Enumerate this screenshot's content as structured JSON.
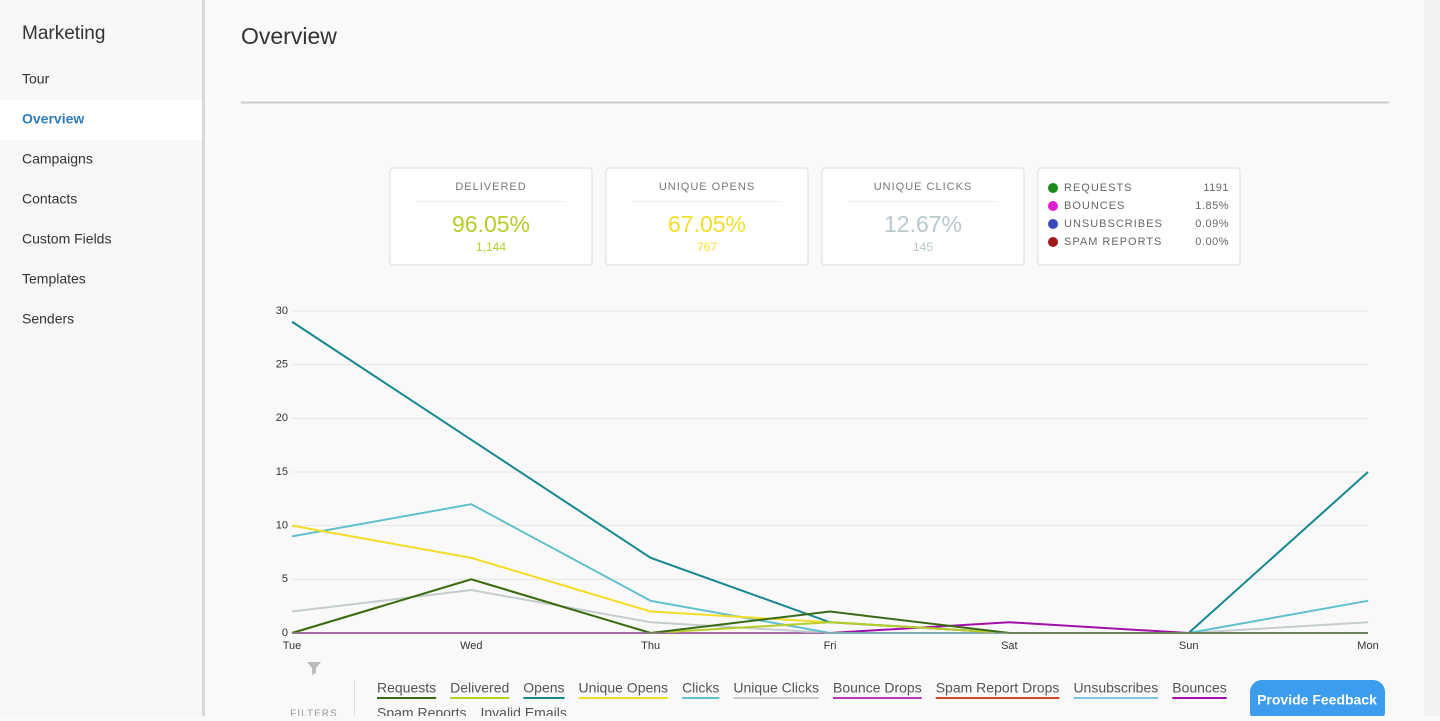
{
  "sidebar": {
    "title": "Marketing",
    "items": [
      "Tour",
      "Overview",
      "Campaigns",
      "Contacts",
      "Custom Fields",
      "Templates",
      "Senders"
    ],
    "active": 1
  },
  "header": {
    "title": "Overview"
  },
  "stats": [
    {
      "label": "DELIVERED",
      "value": "96.05%",
      "count": "1,144",
      "color": "#b8cc2a"
    },
    {
      "label": "UNIQUE OPENS",
      "value": "67.05%",
      "count": "767",
      "color": "#f2de2a"
    },
    {
      "label": "UNIQUE CLICKS",
      "value": "12.67%",
      "count": "145",
      "color": "#b8c8cc"
    }
  ],
  "summary": [
    {
      "label": "REQUESTS",
      "value": "1191",
      "color": "#1a8a1a"
    },
    {
      "label": "BOUNCES",
      "value": "1.85%",
      "color": "#e020d0"
    },
    {
      "label": "UNSUBSCRIBES",
      "value": "0.09%",
      "color": "#3a48b8"
    },
    {
      "label": "SPAM REPORTS",
      "value": "0.00%",
      "color": "#a01818"
    }
  ],
  "chart_data": {
    "type": "line",
    "categories": [
      "Tue",
      "Wed",
      "Thu",
      "Fri",
      "Sat",
      "Sun",
      "Mon"
    ],
    "ylim": [
      0,
      30
    ],
    "yticks": [
      0,
      5,
      10,
      15,
      20,
      25,
      30
    ],
    "grid": true,
    "series": [
      {
        "name": "Requests",
        "color": "#3a6a18",
        "values": [
          0,
          5,
          0,
          2,
          0,
          0,
          0
        ]
      },
      {
        "name": "Delivered",
        "color": "#b8cc2a",
        "values": [
          0,
          5,
          0,
          1,
          0,
          0,
          0
        ]
      },
      {
        "name": "Opens",
        "color": "#178790",
        "values": [
          29,
          18,
          7,
          1,
          0,
          0,
          15
        ]
      },
      {
        "name": "Unique Opens",
        "color": "#f2de2a",
        "values": [
          10,
          7,
          2,
          1,
          0,
          0,
          0
        ]
      },
      {
        "name": "Clicks",
        "color": "#62bfcc",
        "values": [
          9,
          12,
          3,
          0,
          0,
          0,
          3
        ]
      },
      {
        "name": "Unique Clicks",
        "color": "#c4ccd0",
        "values": [
          2,
          4,
          1,
          0,
          0,
          0,
          1
        ]
      },
      {
        "name": "Bounce Drops",
        "color": "#b83ab8",
        "values": [
          0,
          0,
          0,
          0,
          0,
          0,
          0
        ]
      },
      {
        "name": "Spam Report Drops",
        "color": "#d04a28",
        "values": [
          0,
          0,
          0,
          0,
          0,
          0,
          0
        ]
      },
      {
        "name": "Unsubscribes",
        "color": "#80c4e4",
        "values": [
          0,
          0,
          0,
          0,
          0,
          0,
          0
        ]
      },
      {
        "name": "Bounces",
        "color": "#a010a8",
        "values": [
          0,
          0,
          0,
          0,
          1,
          0,
          0
        ]
      },
      {
        "name": "Spam Reports",
        "color": "#e08c60",
        "values": [
          0,
          0,
          0,
          0,
          0,
          0,
          0
        ]
      },
      {
        "name": "Invalid Emails",
        "color": "#8a2a2a",
        "values": [
          0,
          0,
          0,
          0,
          0,
          0,
          0
        ]
      }
    ]
  },
  "filters": {
    "label": "FILTERS"
  },
  "feedback": {
    "label": "Provide Feedback"
  }
}
